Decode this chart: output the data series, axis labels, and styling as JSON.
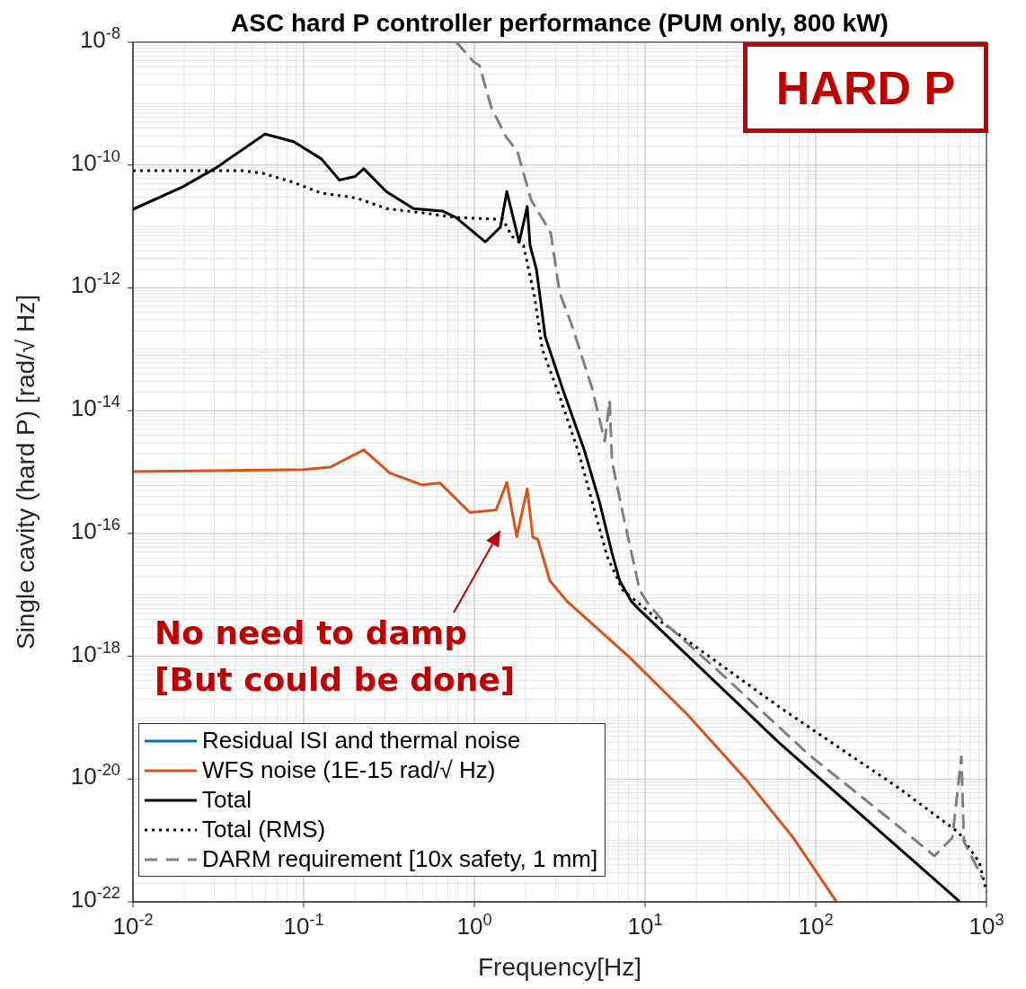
{
  "chart_data": {
    "type": "line",
    "title": "ASC hard P controller performance (PUM only, 800 kW)",
    "xlabel": "Frequency[Hz]",
    "ylabel": "Single cavity (hard P) [rad/√ Hz]",
    "log": "xy",
    "grid": true,
    "legend": "bottom left",
    "marker": "none",
    "xlim": [
      0.01,
      1000
    ],
    "xticks": [
      {
        "value": 0.01,
        "label": "10$^{-2}$"
      },
      {
        "value": 0.1,
        "label": "10$^{-1}$"
      },
      {
        "value": 1,
        "label": "10$^{0}$"
      },
      {
        "value": 10,
        "label": "10$^{1}$"
      },
      {
        "value": 100,
        "label": "10$^{2}$"
      },
      {
        "value": 1000,
        "label": "10$^{3}$"
      }
    ],
    "ylim": [
      1e-22,
      1e-08
    ],
    "yticks": [
      {
        "value": 1e-22,
        "label": "10$^{-22}$"
      },
      {
        "value": 1e-20,
        "label": "10$^{-20}$"
      },
      {
        "value": 1e-18,
        "label": "10$^{-18}$"
      },
      {
        "value": 1e-16,
        "label": "10$^{-16}$"
      },
      {
        "value": 1e-14,
        "label": "10$^{-14}$"
      },
      {
        "value": 1e-12,
        "label": "10$^{-12}$"
      },
      {
        "value": 1e-10,
        "label": "10$^{-10}$"
      },
      {
        "value": 1e-08,
        "label": "10$^{-8}$"
      }
    ],
    "annotations": [
      "HARD P",
      "No need to damp",
      "[But could be done]"
    ],
    "series": [
      {
        "name": "Residual ISI and thermal noise",
        "color": "#0072bd",
        "line_style": "solid"
      },
      {
        "name": "WFS noise (1E-15 rad/√ Hz)",
        "color": "#d95319",
        "line_style": "solid",
        "x": [
          0.01,
          0.1,
          0.143,
          0.225,
          0.32,
          0.49,
          0.63,
          0.94,
          1.34,
          1.55,
          1.77,
          2.04,
          2.2,
          2.35,
          2.77,
          3.5,
          8.0,
          18,
          40,
          74,
          131
        ],
        "values": [
          1.02e-15,
          1.1e-15,
          1.2e-15,
          2.3e-15,
          9.6e-16,
          6.2e-16,
          6.6e-16,
          2.2e-16,
          2.4e-16,
          6.8e-16,
          8.9e-17,
          5.3e-16,
          8.7e-17,
          8.1e-17,
          1.7e-17,
          7.8e-18,
          1e-18,
          1.07e-19,
          9.1e-21,
          1.1e-21,
          1.05e-22
        ]
      },
      {
        "name": "Total",
        "color": "#000000",
        "line_style": "solid",
        "x": [
          0.01,
          0.0195,
          0.0305,
          0.0594,
          0.0875,
          0.127,
          0.162,
          0.2,
          0.225,
          0.305,
          0.44,
          0.65,
          0.78,
          1.16,
          1.42,
          1.55,
          1.83,
          2.04,
          2.12,
          2.31,
          2.45,
          2.6,
          3.3,
          4.4,
          5.4,
          6.4,
          7.1,
          8.3,
          9.1,
          61,
          687
        ],
        "values": [
          1.9e-11,
          4.4e-11,
          8.9e-11,
          3.2e-10,
          2.4e-10,
          1.26e-10,
          5.7e-11,
          6.5e-11,
          8.7e-11,
          3.7e-11,
          1.95e-11,
          1.78e-11,
          1.4e-11,
          5.6e-12,
          9.7e-12,
          3.7e-11,
          5.5e-12,
          2.1e-11,
          4.9e-12,
          2e-12,
          5.8e-13,
          1.6e-13,
          2.2e-14,
          2.3e-15,
          3.3e-16,
          4.8e-17,
          1.7e-17,
          7.9e-18,
          6e-18,
          3.9e-20,
          1.05e-22
        ]
      },
      {
        "name": "Total (RMS)",
        "color": "#000000",
        "line_style": "dotted",
        "x": [
          0.01,
          0.044,
          0.058,
          0.0875,
          0.126,
          0.205,
          0.305,
          0.51,
          0.78,
          1.47,
          1.66,
          1.94,
          2.25,
          2.5,
          3.16,
          4.1,
          6.0,
          7.4,
          12,
          61,
          305,
          687,
          908,
          1000
        ],
        "values": [
          8.1e-11,
          8.1e-11,
          7.3e-11,
          5.2e-11,
          3.5e-11,
          2.9e-11,
          1.95e-11,
          1.65e-11,
          1.4e-11,
          1.3e-11,
          6.9e-12,
          4.9e-12,
          7.2e-13,
          1e-13,
          1.7e-14,
          2e-15,
          4.2e-17,
          1.2e-17,
          3.9e-18,
          1.5e-19,
          7.2e-21,
          1.35e-21,
          4.4e-22,
          1.45e-22
        ]
      },
      {
        "name": "DARM requirement [10x safety, 1 mm]",
        "color": "#808080",
        "line_style": "dashed",
        "x": [
          0.785,
          0.99,
          1.07,
          1.26,
          1.53,
          1.79,
          2.15,
          2.8,
          3.16,
          3.7,
          4.9,
          5.8,
          6.2,
          6.4,
          7.5,
          9.3,
          10.2,
          13,
          27,
          91,
          305,
          495,
          631,
          713,
          738,
          942
        ],
        "values": [
          1e-08,
          4.8e-09,
          4.2e-09,
          8.5e-10,
          2.9e-10,
          1.65e-10,
          2.7e-11,
          7.9e-12,
          8.3e-13,
          2.6e-13,
          2.3e-14,
          3.2e-15,
          1.45e-14,
          1.5e-15,
          1.8e-16,
          1.2e-17,
          7.8e-18,
          3.5e-18,
          5.7e-19,
          2.5e-20,
          1.7e-21,
          5.6e-22,
          1.1e-21,
          2.3e-20,
          9.6e-22,
          2.5e-22
        ]
      }
    ]
  }
}
